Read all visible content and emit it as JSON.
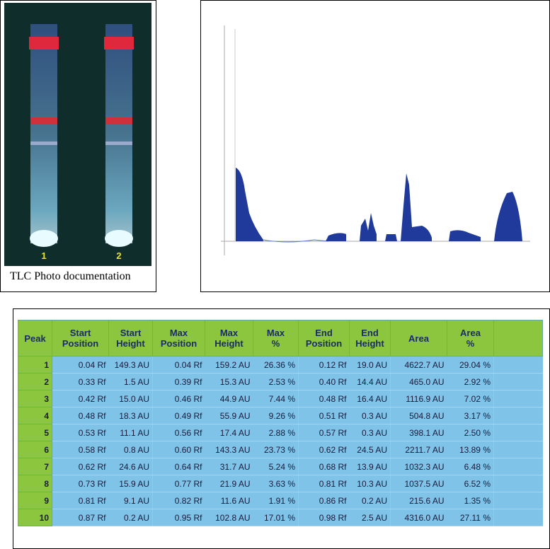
{
  "photo": {
    "lanes": [
      "1",
      "2"
    ],
    "caption": "TLC Photo documentation"
  },
  "table": {
    "header": [
      "Peak",
      "Start Position",
      "Start Height",
      "Max Position",
      "Max Height",
      "Max %",
      "End Position",
      "End Height",
      "Area",
      "Area %"
    ],
    "rows": [
      [
        1,
        "0.04 Rf",
        "149.3 AU",
        "0.04 Rf",
        "159.2 AU",
        "26.36 %",
        "0.12 Rf",
        "19.0 AU",
        "4622.7 AU",
        "29.04 %"
      ],
      [
        2,
        "0.33 Rf",
        "1.5 AU",
        "0.39 Rf",
        "15.3 AU",
        "2.53 %",
        "0.40 Rf",
        "14.4 AU",
        "465.0 AU",
        "2.92 %"
      ],
      [
        3,
        "0.42 Rf",
        "15.0 AU",
        "0.46 Rf",
        "44.9 AU",
        "7.44 %",
        "0.48 Rf",
        "16.4 AU",
        "1116.9 AU",
        "7.02 %"
      ],
      [
        4,
        "0.48 Rf",
        "18.3 AU",
        "0.49 Rf",
        "55.9 AU",
        "9.26 %",
        "0.51 Rf",
        "0.3 AU",
        "504.8 AU",
        "3.17 %"
      ],
      [
        5,
        "0.53 Rf",
        "11.1 AU",
        "0.56 Rf",
        "17.4 AU",
        "2.88 %",
        "0.57 Rf",
        "0.3 AU",
        "398.1 AU",
        "2.50 %"
      ],
      [
        6,
        "0.58 Rf",
        "0.8 AU",
        "0.60 Rf",
        "143.3 AU",
        "23.73 %",
        "0.62 Rf",
        "24.5 AU",
        "2211.7 AU",
        "13.89 %"
      ],
      [
        7,
        "0.62 Rf",
        "24.6 AU",
        "0.64 Rf",
        "31.7 AU",
        "5.24 %",
        "0.68 Rf",
        "13.9 AU",
        "1032.3 AU",
        "6.48 %"
      ],
      [
        8,
        "0.73 Rf",
        "15.9 AU",
        "0.77 Rf",
        "21.9 AU",
        "3.63 %",
        "0.81 Rf",
        "10.3 AU",
        "1037.5 AU",
        "6.52 %"
      ],
      [
        9,
        "0.81 Rf",
        "9.1 AU",
        "0.82 Rf",
        "11.6 AU",
        "1.91 %",
        "0.86 Rf",
        "0.2 AU",
        "215.6 AU",
        "1.35 %"
      ],
      [
        10,
        "0.87 Rf",
        "0.2 AU",
        "0.95 Rf",
        "102.8 AU",
        "17.01 %",
        "0.98 Rf",
        "2.5 AU",
        "4316.0 AU",
        "27.11 %"
      ]
    ]
  }
}
